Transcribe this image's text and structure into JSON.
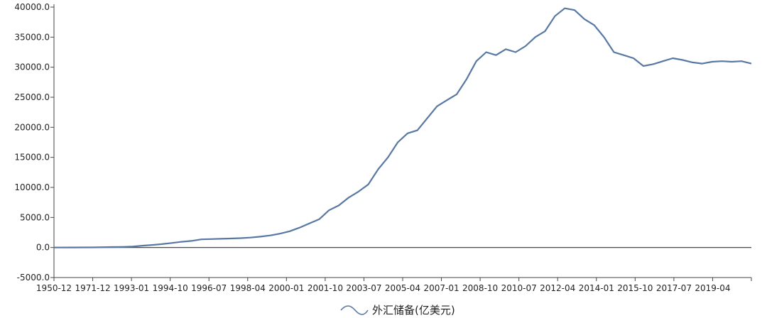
{
  "chart_data": {
    "type": "line",
    "title": "",
    "xlabel": "",
    "ylabel": "",
    "ylim": [
      -5000,
      40000
    ],
    "y_ticks": [
      "40000.0",
      "35000.0",
      "30000.0",
      "25000.0",
      "20000.0",
      "15000.0",
      "10000.0",
      "5000.0",
      "0.0",
      "-5000.0"
    ],
    "x_tick_labels": [
      "1950-12",
      "1971-12",
      "1993-01",
      "1994-10",
      "1996-07",
      "1998-04",
      "2000-01",
      "2001-10",
      "2003-07",
      "2005-04",
      "2007-01",
      "2008-10",
      "2010-07",
      "2012-04",
      "2014-01",
      "2015-10",
      "2017-07",
      "2019-04"
    ],
    "legend": {
      "position": "bottom-center"
    },
    "grid": false,
    "colors": {
      "line": "#5878a3",
      "axis": "#444444",
      "zero_line": "#333333"
    },
    "series": [
      {
        "name": "外汇储备(亿美元)",
        "points": [
          [
            0,
            0
          ],
          [
            2,
            10
          ],
          [
            4,
            20
          ],
          [
            6,
            80
          ],
          [
            7,
            100
          ],
          [
            8,
            150
          ],
          [
            9,
            300
          ],
          [
            10,
            420
          ],
          [
            11,
            560
          ],
          [
            12,
            750
          ],
          [
            13,
            950
          ],
          [
            14,
            1100
          ],
          [
            15,
            1350
          ],
          [
            16,
            1400
          ],
          [
            17,
            1450
          ],
          [
            18,
            1500
          ],
          [
            19,
            1550
          ],
          [
            20,
            1650
          ],
          [
            21,
            1800
          ],
          [
            22,
            2000
          ],
          [
            23,
            2300
          ],
          [
            24,
            2700
          ],
          [
            25,
            3300
          ],
          [
            26,
            4000
          ],
          [
            27,
            4700
          ],
          [
            28,
            6200
          ],
          [
            29,
            7000
          ],
          [
            30,
            8300
          ],
          [
            31,
            9300
          ],
          [
            32,
            10500
          ],
          [
            33,
            13000
          ],
          [
            34,
            15000
          ],
          [
            35,
            17500
          ],
          [
            36,
            19000
          ],
          [
            37,
            19500
          ],
          [
            38,
            21500
          ],
          [
            39,
            23500
          ],
          [
            40,
            24500
          ],
          [
            41,
            25500
          ],
          [
            42,
            28000
          ],
          [
            43,
            31000
          ],
          [
            44,
            32500
          ],
          [
            45,
            32000
          ],
          [
            46,
            33000
          ],
          [
            47,
            32500
          ],
          [
            48,
            33500
          ],
          [
            49,
            35000
          ],
          [
            50,
            36000
          ],
          [
            51,
            38500
          ],
          [
            52,
            39800
          ],
          [
            53,
            39500
          ],
          [
            54,
            38000
          ],
          [
            55,
            37000
          ],
          [
            56,
            35000
          ],
          [
            57,
            32500
          ],
          [
            58,
            32000
          ],
          [
            59,
            31500
          ],
          [
            60,
            30200
          ],
          [
            61,
            30500
          ],
          [
            62,
            31000
          ],
          [
            63,
            31500
          ],
          [
            64,
            31200
          ],
          [
            65,
            30800
          ],
          [
            66,
            30600
          ],
          [
            67,
            30900
          ],
          [
            68,
            31000
          ],
          [
            69,
            30900
          ],
          [
            70,
            31000
          ],
          [
            71,
            30600
          ]
        ]
      }
    ]
  }
}
